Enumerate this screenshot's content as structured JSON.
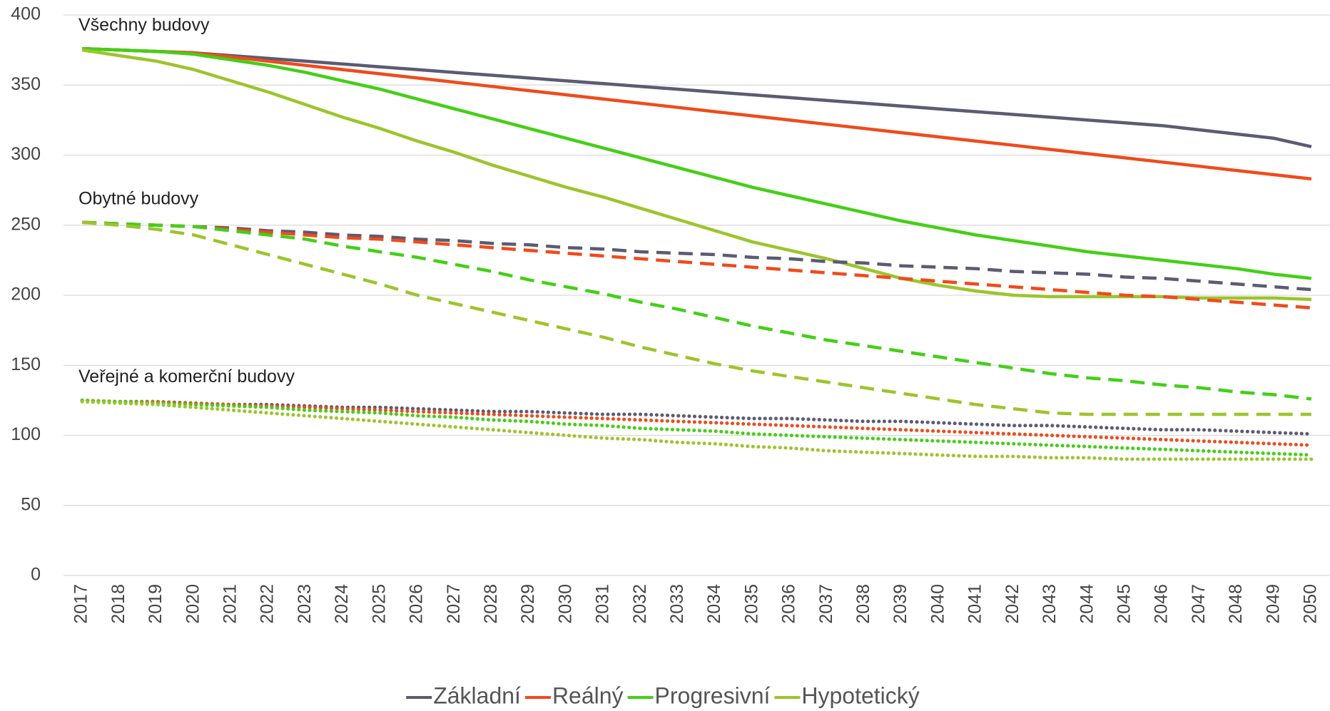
{
  "chart_data": {
    "type": "line",
    "categories": [
      "2017",
      "2018",
      "2019",
      "2020",
      "2021",
      "2022",
      "2023",
      "2024",
      "2025",
      "2026",
      "2027",
      "2028",
      "2029",
      "2030",
      "2031",
      "2032",
      "2033",
      "2034",
      "2035",
      "2036",
      "2037",
      "2038",
      "2039",
      "2040",
      "2041",
      "2042",
      "2043",
      "2044",
      "2045",
      "2046",
      "2047",
      "2048",
      "2049",
      "2050"
    ],
    "ylim": [
      0,
      400
    ],
    "yticks": [
      0,
      50,
      100,
      150,
      200,
      250,
      300,
      350,
      400
    ],
    "grid": true,
    "legend": "bottom",
    "series": [
      {
        "name": "Základní",
        "color": "#5b5b73"
      },
      {
        "name": "Reálný",
        "color": "#ef4b1c"
      },
      {
        "name": "Progresivní",
        "color": "#44cf17"
      },
      {
        "name": "Hypotetický",
        "color": "#9dc42c"
      }
    ],
    "groups": [
      {
        "label": "Všechny budovy",
        "line_style": "solid",
        "series": [
          {
            "values": [
              376,
              375,
              374,
              373,
              371,
              369,
              367,
              365,
              363,
              361,
              359,
              357,
              355,
              353,
              351,
              349,
              347,
              345,
              343,
              341,
              339,
              337,
              335,
              333,
              331,
              329,
              327,
              325,
              323,
              321,
              318,
              315,
              312,
              306
            ]
          },
          {
            "values": [
              376,
              375,
              374,
              373,
              370,
              367,
              364,
              361,
              358,
              355,
              352,
              349,
              346,
              343,
              340,
              337,
              334,
              331,
              328,
              325,
              322,
              319,
              316,
              313,
              310,
              307,
              304,
              301,
              298,
              295,
              292,
              289,
              286,
              283
            ]
          },
          {
            "values": [
              376,
              375,
              374,
              372,
              368,
              364,
              359,
              353,
              347,
              340,
              333,
              326,
              319,
              312,
              305,
              298,
              291,
              284,
              277,
              271,
              265,
              259,
              253,
              248,
              243,
              239,
              235,
              231,
              228,
              225,
              222,
              219,
              215,
              212
            ]
          },
          {
            "values": [
              375,
              371,
              367,
              361,
              353,
              345,
              336,
              327,
              319,
              310,
              302,
              293,
              285,
              277,
              270,
              262,
              254,
              246,
              238,
              232,
              226,
              219,
              212,
              207,
              203,
              200,
              199,
              199,
              199,
              199,
              198,
              198,
              198,
              197
            ]
          }
        ]
      },
      {
        "label": "Obytné budovy",
        "line_style": "dashed",
        "series": [
          {
            "values": [
              252,
              251,
              250,
              249,
              248,
              246,
              245,
              243,
              242,
              240,
              239,
              237,
              236,
              234,
              233,
              231,
              230,
              229,
              227,
              226,
              224,
              223,
              221,
              220,
              219,
              217,
              216,
              215,
              213,
              212,
              210,
              208,
              206,
              204
            ]
          },
          {
            "values": [
              252,
              251,
              250,
              249,
              247,
              245,
              243,
              241,
              240,
              238,
              236,
              234,
              232,
              230,
              228,
              226,
              224,
              222,
              220,
              218,
              216,
              214,
              212,
              210,
              208,
              206,
              204,
              202,
              200,
              199,
              197,
              195,
              193,
              191
            ]
          },
          {
            "values": [
              252,
              251,
              250,
              249,
              246,
              243,
              240,
              235,
              231,
              227,
              222,
              217,
              211,
              206,
              201,
              195,
              190,
              184,
              178,
              173,
              168,
              164,
              160,
              156,
              152,
              148,
              144,
              141,
              139,
              136,
              134,
              131,
              129,
              126
            ]
          },
          {
            "values": [
              252,
              250,
              247,
              243,
              236,
              229,
              222,
              215,
              208,
              200,
              194,
              188,
              182,
              176,
              170,
              163,
              157,
              151,
              146,
              142,
              138,
              134,
              130,
              126,
              122,
              119,
              116,
              115,
              115,
              115,
              115,
              115,
              115,
              115
            ]
          }
        ]
      },
      {
        "label": "Veřejné a komerční budovy",
        "line_style": "dotted",
        "series": [
          {
            "values": [
              125,
              124,
              124,
              123,
              122,
              122,
              121,
              120,
              120,
              119,
              118,
              117,
              117,
              116,
              115,
              115,
              114,
              113,
              112,
              112,
              111,
              110,
              110,
              109,
              108,
              107,
              107,
              106,
              105,
              104,
              104,
              103,
              102,
              101
            ]
          },
          {
            "values": [
              125,
              124,
              124,
              123,
              122,
              121,
              120,
              119,
              118,
              117,
              116,
              115,
              114,
              113,
              112,
              111,
              110,
              109,
              108,
              107,
              106,
              105,
              104,
              103,
              102,
              101,
              100,
              99,
              98,
              97,
              96,
              95,
              94,
              93
            ]
          },
          {
            "values": [
              125,
              124,
              123,
              122,
              121,
              120,
              118,
              117,
              116,
              114,
              113,
              111,
              110,
              108,
              107,
              105,
              104,
              103,
              101,
              100,
              99,
              98,
              97,
              96,
              95,
              94,
              93,
              92,
              91,
              90,
              89,
              88,
              87,
              86
            ]
          },
          {
            "values": [
              124,
              123,
              122,
              120,
              118,
              116,
              114,
              112,
              110,
              108,
              106,
              104,
              102,
              100,
              98,
              97,
              95,
              94,
              92,
              91,
              89,
              88,
              87,
              86,
              85,
              85,
              84,
              84,
              83,
              83,
              83,
              83,
              83,
              83
            ]
          }
        ]
      }
    ]
  }
}
